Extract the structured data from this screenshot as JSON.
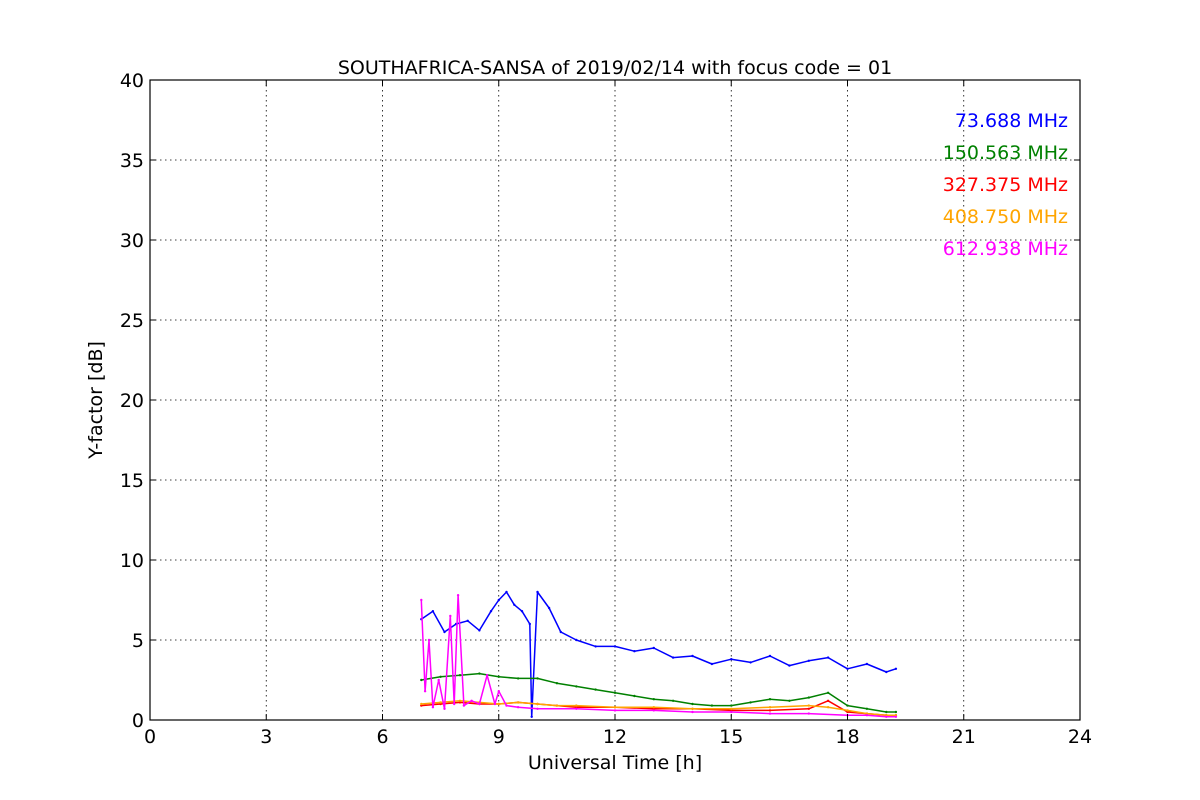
{
  "chart_data": {
    "type": "line",
    "title": "SOUTHAFRICA-SANSA of 2019/02/14 with focus code = 01",
    "xlabel": "Universal Time [h]",
    "ylabel": "Y-factor [dB]",
    "xlim": [
      0,
      24
    ],
    "ylim": [
      0,
      40
    ],
    "xticks": [
      "0",
      "3",
      "6",
      "9",
      "12",
      "15",
      "18",
      "21",
      "24"
    ],
    "yticks": [
      "0",
      "5",
      "10",
      "15",
      "20",
      "25",
      "30",
      "35",
      "40"
    ],
    "xtick_values": [
      0,
      3,
      6,
      9,
      12,
      15,
      18,
      21,
      24
    ],
    "ytick_values": [
      0,
      5,
      10,
      15,
      20,
      25,
      30,
      35,
      40
    ],
    "grid": true,
    "legend_position": "top-right",
    "series": [
      {
        "name": "73.688 MHz",
        "color": "#0000ff",
        "x": [
          7.0,
          7.3,
          7.6,
          7.9,
          8.2,
          8.5,
          8.8,
          9.0,
          9.2,
          9.4,
          9.6,
          9.8,
          9.85,
          10.0,
          10.3,
          10.6,
          11.0,
          11.5,
          12.0,
          12.5,
          13.0,
          13.5,
          14.0,
          14.5,
          15.0,
          15.5,
          16.0,
          16.5,
          17.0,
          17.5,
          18.0,
          18.5,
          19.0,
          19.25
        ],
        "y": [
          6.3,
          6.8,
          5.5,
          6.0,
          6.2,
          5.6,
          6.8,
          7.5,
          8.0,
          7.2,
          6.8,
          6.0,
          0.2,
          8.0,
          7.0,
          5.5,
          5.0,
          4.6,
          4.6,
          4.3,
          4.5,
          3.9,
          4.0,
          3.5,
          3.8,
          3.6,
          4.0,
          3.4,
          3.7,
          3.9,
          3.2,
          3.5,
          3.0,
          3.2
        ]
      },
      {
        "name": "150.563 MHz",
        "color": "#008000",
        "x": [
          7.0,
          7.5,
          8.0,
          8.5,
          9.0,
          9.5,
          10.0,
          10.5,
          11.0,
          11.5,
          12.0,
          12.5,
          13.0,
          13.5,
          14.0,
          14.5,
          15.0,
          15.5,
          16.0,
          16.5,
          17.0,
          17.5,
          18.0,
          18.5,
          19.0,
          19.25
        ],
        "y": [
          2.5,
          2.7,
          2.8,
          2.9,
          2.7,
          2.6,
          2.6,
          2.3,
          2.1,
          1.9,
          1.7,
          1.5,
          1.3,
          1.2,
          1.0,
          0.9,
          0.9,
          1.1,
          1.3,
          1.2,
          1.4,
          1.7,
          0.9,
          0.7,
          0.5,
          0.5
        ]
      },
      {
        "name": "327.375 MHz",
        "color": "#ff0000",
        "x": [
          7.0,
          7.5,
          8.0,
          8.5,
          9.0,
          9.5,
          10.0,
          10.5,
          11.0,
          12.0,
          13.0,
          14.0,
          15.0,
          16.0,
          17.0,
          17.5,
          18.0,
          18.5,
          19.0,
          19.25
        ],
        "y": [
          0.9,
          1.0,
          1.1,
          1.0,
          1.0,
          1.1,
          1.0,
          0.9,
          0.8,
          0.8,
          0.7,
          0.7,
          0.6,
          0.6,
          0.7,
          1.2,
          0.5,
          0.4,
          0.3,
          0.3
        ]
      },
      {
        "name": "408.750 MHz",
        "color": "#ffa500",
        "x": [
          7.0,
          7.5,
          8.0,
          8.5,
          9.0,
          9.5,
          10.0,
          10.5,
          11.0,
          12.0,
          13.0,
          14.0,
          15.0,
          16.0,
          17.0,
          17.5,
          18.0,
          18.5,
          19.0,
          19.25
        ],
        "y": [
          1.0,
          1.1,
          1.2,
          1.1,
          1.0,
          1.1,
          1.0,
          0.9,
          0.9,
          0.8,
          0.8,
          0.7,
          0.7,
          0.8,
          0.9,
          0.8,
          0.6,
          0.4,
          0.3,
          0.3
        ]
      },
      {
        "name": "612.938 MHz",
        "color": "#ff00ff",
        "x": [
          7.0,
          7.1,
          7.2,
          7.3,
          7.45,
          7.6,
          7.75,
          7.85,
          7.95,
          8.1,
          8.3,
          8.5,
          8.7,
          8.9,
          9.0,
          9.2,
          9.5,
          10.0,
          11.0,
          12.0,
          13.0,
          14.0,
          15.0,
          16.0,
          17.0,
          18.0,
          18.5,
          19.0,
          19.25
        ],
        "y": [
          7.5,
          1.8,
          5.0,
          0.8,
          2.5,
          0.7,
          6.5,
          1.0,
          7.8,
          0.9,
          1.2,
          1.0,
          2.8,
          1.0,
          1.8,
          0.9,
          0.8,
          0.7,
          0.7,
          0.6,
          0.6,
          0.5,
          0.5,
          0.4,
          0.4,
          0.3,
          0.3,
          0.2,
          0.2
        ]
      }
    ]
  }
}
